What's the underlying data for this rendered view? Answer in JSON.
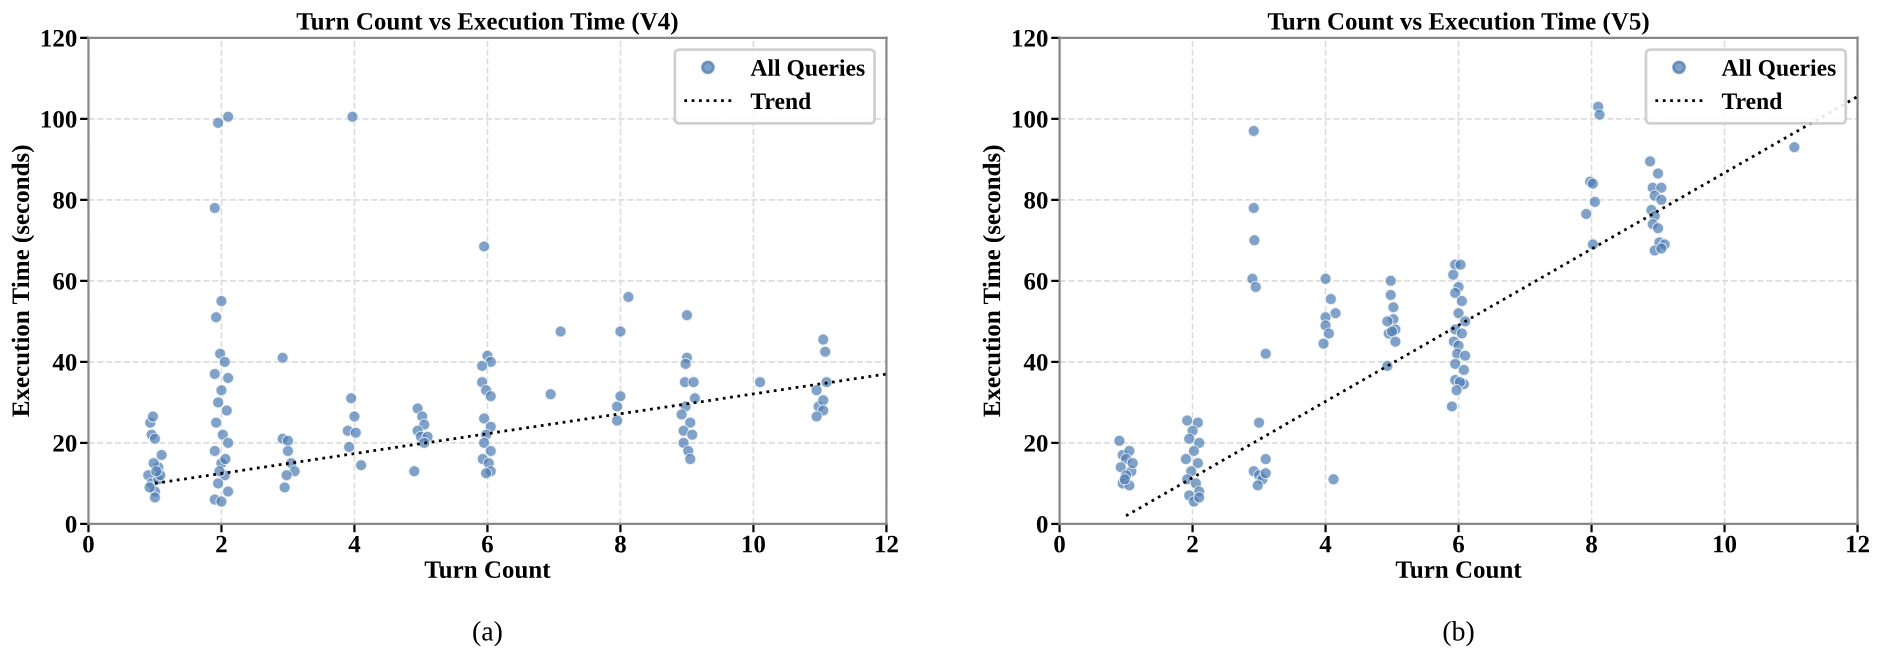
{
  "chart_data": [
    {
      "type": "scatter",
      "title": "Turn Count vs Execution Time (V4)",
      "xlabel": "Turn Count",
      "ylabel": "Execution Time (seconds)",
      "xlim": [
        0,
        12
      ],
      "ylim": [
        0,
        120
      ],
      "xticks": [
        0,
        2,
        4,
        6,
        8,
        10,
        12
      ],
      "yticks": [
        0,
        20,
        40,
        60,
        80,
        100,
        120
      ],
      "grid": true,
      "legend": "top right",
      "annotations": [
        "(a)"
      ],
      "series": [
        {
          "name": "All Queries",
          "marker": "circle",
          "color": "#4a7ab0",
          "x": [
            0.93,
            0.97,
            0.95,
            1.0,
            0.9,
            0.95,
            1.0,
            1.05,
            1.1,
            1.05,
            1.0,
            0.92,
            1.08,
            0.98,
            1.02,
            1.9,
            1.95,
            2.1,
            2.0,
            1.92,
            1.98,
            2.05,
            1.9,
            2.1,
            2.0,
            1.95,
            2.08,
            1.92,
            2.02,
            2.1,
            1.9,
            2.0,
            2.05,
            1.95,
            2.1,
            1.9,
            2.0,
            2.06,
            1.97,
            2.92,
            2.92,
            3.0,
            3.0,
            2.95,
            3.05,
            3.1,
            2.98,
            3.97,
            3.95,
            4.0,
            3.9,
            4.02,
            3.92,
            4.1,
            4.95,
            5.02,
            5.05,
            4.95,
            5.0,
            5.1,
            5.05,
            4.9,
            5.95,
            6.0,
            6.05,
            5.92,
            5.92,
            5.98,
            6.05,
            5.95,
            6.05,
            5.98,
            5.95,
            6.05,
            5.93,
            6.02,
            6.05,
            5.98,
            6.95,
            7.1,
            7.95,
            7.95,
            8.0,
            8.0,
            8.12,
            9.0,
            9.0,
            8.98,
            8.97,
            9.1,
            9.12,
            8.98,
            8.92,
            9.05,
            8.95,
            9.08,
            8.95,
            9.02,
            9.05,
            10.1,
            11.05,
            11.08,
            11.1,
            10.95,
            10.98,
            11.05,
            11.05,
            10.95
          ],
          "values": [
            25,
            26.5,
            22,
            21,
            12,
            10,
            8,
            14,
            17,
            11,
            6.5,
            9,
            12,
            15,
            13,
            78,
            99,
            100.5,
            55,
            51,
            42,
            40,
            37,
            36,
            33,
            30,
            28,
            25,
            22,
            20,
            18,
            15,
            12,
            10,
            8,
            6,
            5.5,
            16,
            13,
            41,
            21,
            20.5,
            18,
            9,
            15,
            13,
            12,
            100.5,
            31,
            26.5,
            23,
            22.5,
            19,
            14.5,
            28.5,
            26.5,
            24.5,
            23,
            21.5,
            21.5,
            20,
            13,
            68.5,
            41.5,
            40,
            39,
            35,
            33,
            31.5,
            26,
            24,
            22,
            20,
            18,
            16,
            15,
            13,
            12.5,
            32,
            47.5,
            25.5,
            29,
            31.5,
            47.5,
            56,
            51.5,
            41,
            39.5,
            35,
            35,
            31,
            29,
            27,
            25,
            23,
            22,
            20,
            18,
            16,
            35,
            45.5,
            42.5,
            35,
            33,
            29,
            30.5,
            28,
            26.5
          ]
        },
        {
          "name": "Trend",
          "type": "line",
          "color": "#000000",
          "line_style": "dotted",
          "x": [
            1,
            12
          ],
          "values": [
            10,
            37
          ]
        }
      ]
    },
    {
      "type": "scatter",
      "title": "Turn Count vs Execution Time (V5)",
      "xlabel": "Turn Count",
      "ylabel": "Execution Time (seconds)",
      "xlim": [
        0,
        12
      ],
      "ylim": [
        0,
        120
      ],
      "xticks": [
        0,
        2,
        4,
        6,
        8,
        10,
        12
      ],
      "yticks": [
        0,
        20,
        40,
        60,
        80,
        100,
        120
      ],
      "grid": true,
      "legend": "top right",
      "annotations": [
        "(b)"
      ],
      "series": [
        {
          "name": "All Queries",
          "marker": "circle",
          "color": "#4a7ab0",
          "x": [
            0.9,
            0.95,
            1.05,
            1.0,
            0.92,
            1.08,
            1.0,
            0.95,
            1.05,
            1.1,
            0.98,
            1.92,
            2.08,
            2.0,
            1.95,
            2.1,
            2.02,
            1.9,
            2.08,
            1.98,
            1.92,
            2.05,
            2.1,
            1.95,
            2.02,
            2.1,
            2.92,
            2.92,
            2.93,
            2.9,
            2.95,
            3.1,
            3.0,
            3.1,
            2.92,
            3.0,
            3.05,
            2.98,
            3.1,
            4.0,
            4.08,
            4.15,
            4.0,
            4.0,
            4.05,
            3.97,
            4.12,
            4.98,
            4.98,
            5.02,
            5.02,
            4.93,
            4.95,
            5.05,
            5.0,
            5.05,
            4.93,
            5.95,
            6.03,
            5.92,
            6.0,
            5.95,
            6.05,
            6.0,
            6.1,
            5.95,
            6.05,
            5.93,
            6.0,
            5.98,
            6.1,
            5.95,
            6.08,
            5.95,
            6.08,
            6.02,
            5.97,
            5.9,
            8.1,
            8.12,
            7.98,
            8.02,
            8.05,
            7.92,
            8.02,
            8.88,
            9.0,
            8.92,
            9.05,
            8.95,
            9.05,
            8.9,
            8.95,
            8.92,
            9.0,
            9.02,
            9.1,
            8.95,
            9.05,
            11.05
          ],
          "values": [
            20.5,
            17,
            18,
            16,
            14,
            13,
            12,
            10,
            9.5,
            15,
            11,
            25.5,
            25,
            23,
            21,
            20,
            18,
            16,
            15,
            13,
            11,
            10,
            8,
            7,
            5.5,
            6.5,
            97,
            78,
            70,
            60.5,
            58.5,
            42,
            25,
            16,
            13,
            12,
            11,
            9.5,
            12.5,
            60.5,
            55.5,
            52,
            51,
            49,
            47,
            44.5,
            11,
            60,
            56.5,
            53.5,
            50.5,
            50,
            47,
            48,
            47.5,
            45,
            39,
            64,
            64,
            61.5,
            58.5,
            57,
            55,
            52,
            50,
            48,
            47,
            45,
            44,
            42,
            41.5,
            39.5,
            38,
            35.5,
            34.5,
            35,
            33,
            29,
            103,
            101,
            84.5,
            84,
            79.5,
            76.5,
            69,
            89.5,
            86.5,
            83,
            83,
            81,
            80,
            77.5,
            76,
            74,
            73,
            69.5,
            69,
            67.5,
            68,
            93
          ]
        },
        {
          "name": "Trend",
          "type": "line",
          "color": "#000000",
          "line_style": "dotted",
          "x": [
            1,
            12
          ],
          "values": [
            2,
            105.5
          ]
        }
      ]
    }
  ]
}
